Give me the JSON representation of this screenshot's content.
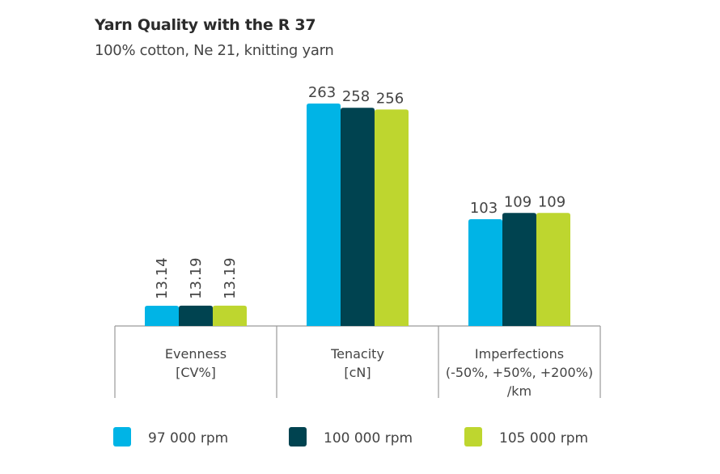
{
  "chart_data": {
    "type": "bar",
    "title": "Yarn Quality with the R 37",
    "subtitle": "100% cotton, Ne 21, knitting yarn",
    "categories": [
      {
        "lines": [
          "Evenness",
          "[CV%]"
        ]
      },
      {
        "lines": [
          "Tenacity",
          "[cN]"
        ]
      },
      {
        "lines": [
          "Imperfections",
          "(-50%, +50%, +200%)",
          "/km"
        ]
      }
    ],
    "series": [
      {
        "name": "97 000 rpm",
        "color": "#00b4e6",
        "values": [
          13.14,
          263,
          103
        ],
        "labels": [
          "13.14",
          "263",
          "103"
        ]
      },
      {
        "name": "100 000 rpm",
        "color": "#004350",
        "values": [
          13.19,
          258,
          109
        ],
        "labels": [
          "13.19",
          "258",
          "109"
        ]
      },
      {
        "name": "105 000 rpm",
        "color": "#bed62f",
        "values": [
          13.19,
          256,
          109
        ],
        "labels": [
          "13.19",
          "256",
          "109"
        ]
      }
    ],
    "value_label_orientation": [
      "vertical",
      "horizontal",
      "horizontal"
    ],
    "axis_note": "each category group uses its own independent scale; no y-axis shown",
    "xlabel": "",
    "ylabel": "",
    "grid": false,
    "legend_position": "bottom"
  }
}
